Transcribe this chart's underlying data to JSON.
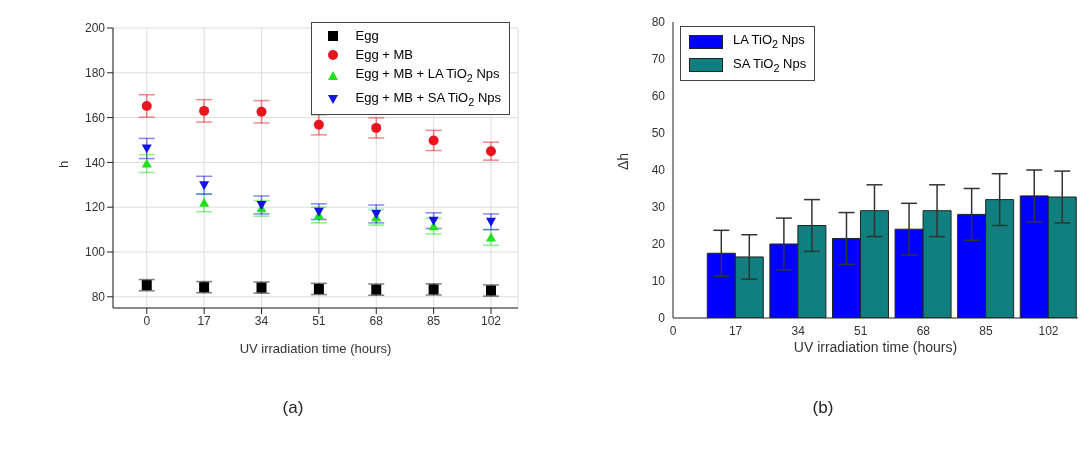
{
  "chart_data": [
    {
      "type": "scatter",
      "xlabel": "UV irradiation time (hours)",
      "ylabel": "h",
      "annotations": [
        "(a)"
      ],
      "x": [
        0,
        17,
        34,
        51,
        68,
        85,
        102
      ],
      "xlim": [
        -10,
        110
      ],
      "xticks": [
        0,
        17,
        34,
        51,
        68,
        85,
        102
      ],
      "ylim": [
        75,
        200
      ],
      "yticks": [
        80,
        100,
        120,
        140,
        160,
        180,
        200
      ],
      "grid": true,
      "legend": "top right",
      "series": [
        {
          "name": "Egg",
          "color": "#000000",
          "marker": "square",
          "values": [
            85.2,
            84.3,
            84.1,
            83.5,
            83.2,
            83.3,
            82.8
          ],
          "errors": [
            2.5,
            2.5,
            2.5,
            2.5,
            2.5,
            2.5,
            2.5
          ]
        },
        {
          "name": "Egg + MB",
          "color": "#e8141e",
          "marker": "circle",
          "values": [
            165.2,
            163,
            162.6,
            156.8,
            155.4,
            149.8,
            145
          ],
          "errors": [
            5,
            5,
            5,
            4.5,
            4.5,
            4.5,
            4
          ]
        },
        {
          "name": "Egg + MB + LA TiO$_{2}$ Nps",
          "color": "#22e01e",
          "marker": "triangle",
          "values": [
            139.5,
            122,
            119.5,
            116.5,
            115.5,
            111.5,
            106.5
          ],
          "errors": [
            4,
            4,
            3.5,
            3.5,
            3.5,
            3.5,
            3.5
          ]
        },
        {
          "name": "Egg + MB + SA TiO$_{2}$ Nps",
          "color": "#1414e0",
          "marker": "triangle-down",
          "values": [
            146.2,
            129.8,
            121,
            118,
            117,
            114,
            113.5
          ],
          "errors": [
            4.5,
            4,
            4,
            3.5,
            4,
            3.5,
            3.5
          ]
        }
      ]
    },
    {
      "type": "bar",
      "xlabel": "UV irradiation time (hours)",
      "ylabel": "Δh",
      "annotations": [
        "(b)"
      ],
      "x": [
        17,
        34,
        51,
        68,
        85,
        102
      ],
      "xlim": [
        0,
        110
      ],
      "xticks": [
        0,
        17,
        34,
        51,
        68,
        85,
        102
      ],
      "ylim": [
        0,
        80
      ],
      "yticks": [
        0,
        10,
        20,
        30,
        40,
        50,
        60,
        70,
        80
      ],
      "legend": "top left",
      "series": [
        {
          "name": "LA TiO$_{2}$ Nps",
          "color": "#0000ff",
          "values": [
            17.5,
            20,
            21.5,
            24,
            28,
            33
          ],
          "errors": [
            6.2,
            7,
            7,
            7,
            7,
            7
          ]
        },
        {
          "name": "SA TiO$_{2}$ Nps",
          "color": "#0f7f7f",
          "values": [
            16.5,
            25,
            29,
            29,
            32,
            32.7
          ],
          "errors": [
            6,
            7,
            7,
            7,
            7,
            7
          ]
        }
      ]
    }
  ]
}
